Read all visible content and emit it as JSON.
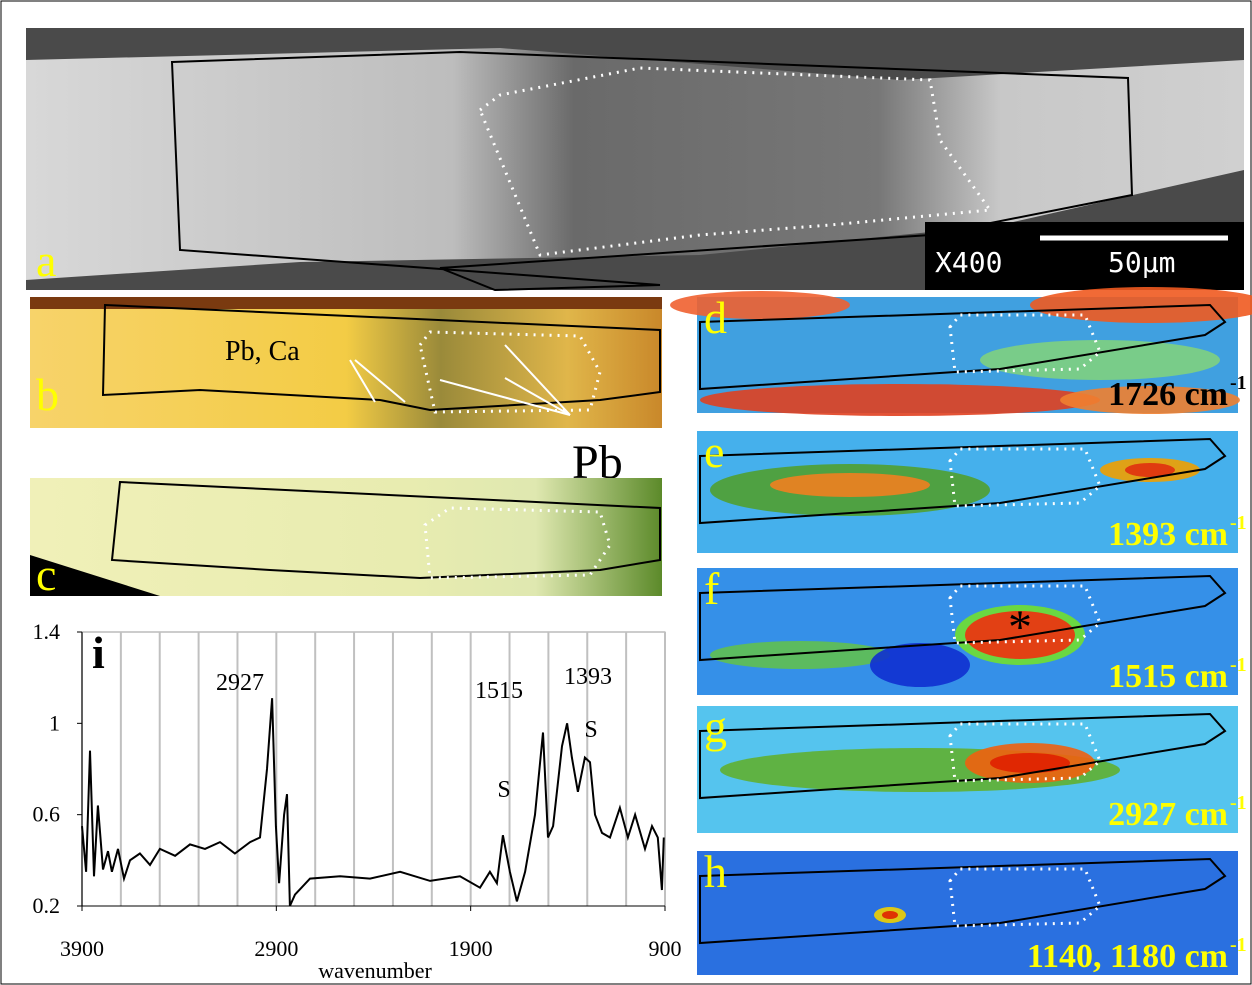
{
  "panels": [
    {
      "label": "a",
      "magnification": "X400",
      "scale_bar": "50µm"
    },
    {
      "label": "b",
      "annotation": "Pb, Ca",
      "annotation_2": "Pb"
    },
    {
      "label": "c"
    },
    {
      "label": "d",
      "band": "1726 cm",
      "band_sup": "-1"
    },
    {
      "label": "e",
      "band": "1393 cm",
      "band_sup": "-1"
    },
    {
      "label": "f",
      "band": "1515 cm",
      "band_sup": "-1",
      "marker": "*"
    },
    {
      "label": "g",
      "band": "2927 cm",
      "band_sup": "-1"
    },
    {
      "label": "h",
      "band": "1140, 1180 cm",
      "band_sup": "-1"
    }
  ],
  "chart_data": {
    "type": "line",
    "panel_label": "i",
    "x_label": "wavenumber",
    "color": "#000000",
    "annotations": [
      "2927",
      "1515",
      "1393",
      "S",
      "S"
    ],
    "x": [
      3900,
      3879,
      3859,
      3838,
      3818,
      3792,
      3766,
      3746,
      3715,
      3684,
      3653,
      3602,
      3550,
      3499,
      3421,
      3344,
      3267,
      3190,
      3113,
      3035,
      2984,
      2948,
      2922,
      2902,
      2886,
      2860,
      2845,
      2830,
      2804,
      2727,
      2572,
      2418,
      2263,
      2109,
      1955,
      1852,
      1801,
      1765,
      1734,
      1698,
      1662,
      1620,
      1569,
      1528,
      1502,
      1476,
      1430,
      1404,
      1379,
      1348,
      1312,
      1286,
      1260,
      1224,
      1183,
      1132,
      1091,
      1054,
      1003,
      967,
      937,
      916,
      906
    ],
    "values": [
      0.55,
      0.35,
      0.88,
      0.33,
      0.64,
      0.36,
      0.44,
      0.35,
      0.45,
      0.32,
      0.4,
      0.43,
      0.38,
      0.45,
      0.42,
      0.47,
      0.45,
      0.48,
      0.43,
      0.48,
      0.5,
      0.8,
      1.11,
      0.55,
      0.3,
      0.6,
      0.69,
      0.2,
      0.25,
      0.32,
      0.33,
      0.32,
      0.35,
      0.31,
      0.33,
      0.28,
      0.35,
      0.3,
      0.51,
      0.35,
      0.22,
      0.35,
      0.6,
      0.96,
      0.5,
      0.55,
      0.9,
      1.0,
      0.85,
      0.7,
      0.85,
      0.83,
      0.6,
      0.52,
      0.5,
      0.63,
      0.5,
      0.6,
      0.45,
      0.55,
      0.5,
      0.27,
      0.5
    ],
    "xlim": [
      3900,
      900
    ],
    "xticks": [
      3900,
      2900,
      1900,
      900
    ],
    "xgrid_step": 200,
    "ylim": [
      0.2,
      1.4
    ],
    "yticks": [
      0.2,
      0.6,
      1,
      1.4
    ]
  }
}
